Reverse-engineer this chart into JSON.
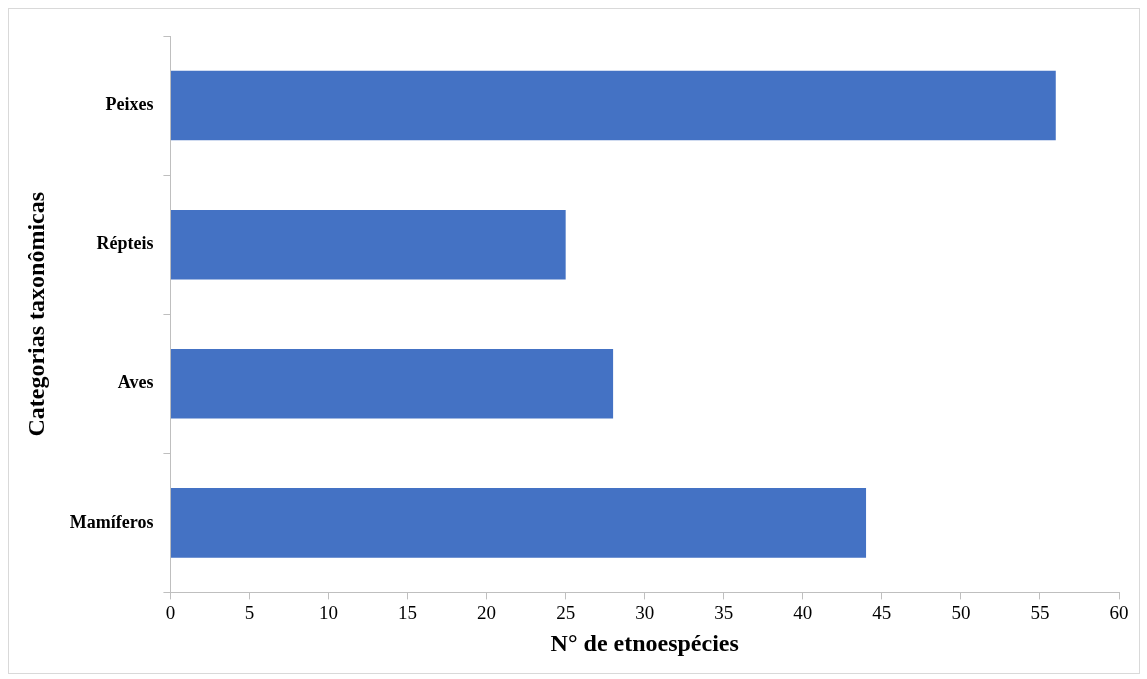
{
  "chart_data": {
    "type": "bar",
    "orientation": "horizontal",
    "xlabel": "N° de etnoespécies",
    "ylabel": "Categorias taxonômicas",
    "categories": [
      "Peixes",
      "Répteis",
      "Aves",
      "Mamíferos"
    ],
    "values": [
      56,
      25,
      28,
      44
    ],
    "color": "#4472c4",
    "xlim": [
      0,
      60
    ],
    "xticks": [
      0,
      5,
      10,
      15,
      20,
      25,
      30,
      35,
      40,
      45,
      50,
      55,
      60
    ]
  }
}
